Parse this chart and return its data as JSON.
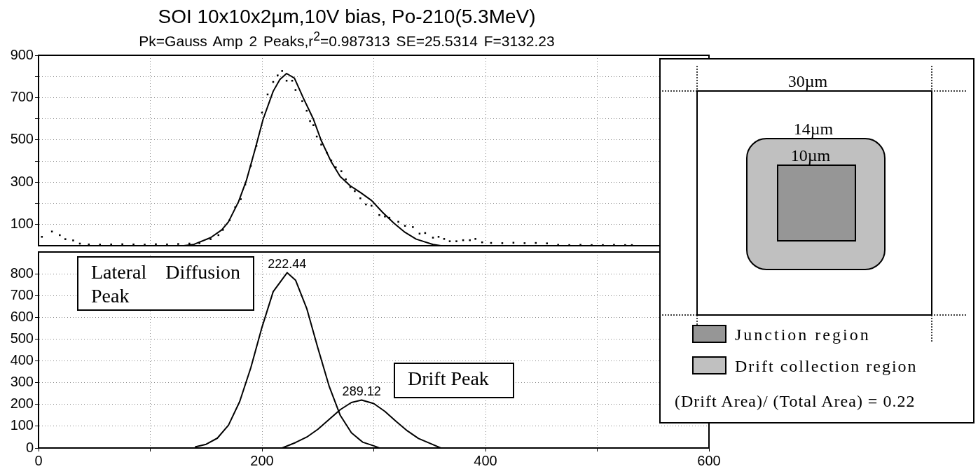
{
  "chart_data": [
    {
      "type": "scatter",
      "title": "SOI 10x10x2µm,10V bias, Po-210(5.3MeV)",
      "subtitle": "Pk=Gauss Amp  2 Peaks,r$^{2}$=0.987313  SE=25.5314  F=3132.23",
      "xlim": [
        0,
        600
      ],
      "xticks": [
        0,
        {
          "value": 100,
          "label": null
        },
        200,
        {
          "value": 300,
          "label": null
        },
        400,
        {
          "value": 500,
          "label": null
        },
        600
      ],
      "ylim": [
        0,
        900
      ],
      "yticks": [
        100,
        {
          "value": 200,
          "label": null
        },
        300,
        {
          "value": 400,
          "label": null
        },
        500,
        {
          "value": 600,
          "label": null
        },
        700,
        {
          "value": 800,
          "label": null
        },
        900
      ],
      "tick_labels": "y",
      "grid": true,
      "series": [
        {
          "type": "scatter",
          "color": "#000000",
          "marker": "square",
          "x": [
            3,
            12,
            19,
            24,
            31,
            37,
            45,
            55,
            65,
            75,
            85,
            95,
            105,
            115,
            125,
            135,
            144,
            154,
            161,
            165,
            171,
            176,
            181,
            185,
            190,
            195,
            200,
            205,
            210,
            214,
            218,
            222,
            227,
            230,
            236,
            240,
            243,
            246,
            249,
            253,
            258,
            262,
            266,
            271,
            275,
            279,
            283,
            288,
            293,
            298,
            305,
            310,
            314,
            322,
            328,
            335,
            341,
            346,
            353,
            358,
            363,
            368,
            374,
            380,
            386,
            391,
            397,
            405,
            415,
            425,
            435,
            445,
            455,
            465,
            475,
            485,
            495,
            505,
            515,
            525,
            531
          ],
          "values": [
            42,
            67,
            50,
            31,
            25,
            10,
            6,
            5,
            6,
            7,
            6,
            5,
            7,
            6,
            8,
            10,
            12,
            31,
            50,
            75,
            120,
            182,
            220,
            289,
            377,
            472,
            629,
            715,
            774,
            805,
            826,
            780,
            780,
            736,
            683,
            638,
            589,
            570,
            516,
            478,
            440,
            403,
            371,
            352,
            314,
            277,
            258,
            224,
            195,
            189,
            145,
            138,
            132,
            113,
            94,
            88,
            57,
            60,
            38,
            42,
            32,
            21,
            21,
            26,
            26,
            32,
            16,
            13,
            12,
            14,
            12,
            13,
            11,
            4,
            3,
            4,
            3,
            3,
            4,
            3,
            3
          ]
        },
        {
          "type": "line",
          "color": "#000000",
          "x": [
            130,
            139,
            154,
            164,
            170,
            179,
            186,
            194,
            201,
            210,
            216,
            222,
            229,
            237,
            246,
            253,
            262,
            270,
            279,
            288,
            298,
            308,
            318,
            328,
            338,
            353,
            360
          ],
          "values": [
            0,
            6,
            38,
            75,
            113,
            208,
            308,
            459,
            598,
            730,
            786,
            814,
            792,
            698,
            598,
            497,
            396,
            327,
            283,
            252,
            214,
            157,
            107,
            63,
            31,
            6,
            0
          ]
        }
      ]
    },
    {
      "type": "line",
      "xlim": [
        0,
        600
      ],
      "xticks": [
        0,
        {
          "value": 100,
          "label": null
        },
        200,
        {
          "value": 300,
          "label": null
        },
        400,
        {
          "value": 500,
          "label": null
        },
        600
      ],
      "ylim": [
        0,
        900
      ],
      "yticks": [
        0,
        100,
        200,
        300,
        400,
        500,
        600,
        700,
        800
      ],
      "grid": true,
      "series": [
        {
          "color": "#000000",
          "x": [
            140,
            150,
            160,
            170,
            180,
            190,
            200,
            210,
            222.44,
            230,
            240,
            250,
            260,
            270,
            280,
            290,
            300,
            305
          ],
          "values": [
            5,
            17,
            45,
            105,
            213,
            369,
            555,
            718,
            805,
            771,
            641,
            459,
            285,
            150,
            70,
            27,
            10,
            0
          ]
        },
        {
          "color": "#000000",
          "x": [
            218,
            230,
            240,
            250,
            260,
            270,
            280,
            289.12,
            300,
            310,
            320,
            330,
            340,
            350,
            360
          ],
          "values": [
            0,
            25,
            50,
            86,
            131,
            176,
            209,
            220,
            204,
            168,
            122,
            79,
            44,
            22,
            0
          ]
        }
      ],
      "annotations": [
        "Lateral  Diffusion Peak",
        "Drift Peak",
        {
          "text": "222.44",
          "x": 222.44,
          "y": 805
        },
        {
          "text": "289.12",
          "x": 289.12,
          "y": 220
        }
      ]
    },
    {
      "type": "other",
      "annotations": [
        "30µm",
        "14µm",
        "10µm",
        "Junction region",
        "Drift collection region",
        "(Drift Area)/ (Total Area)  = 0.22"
      ]
    }
  ]
}
